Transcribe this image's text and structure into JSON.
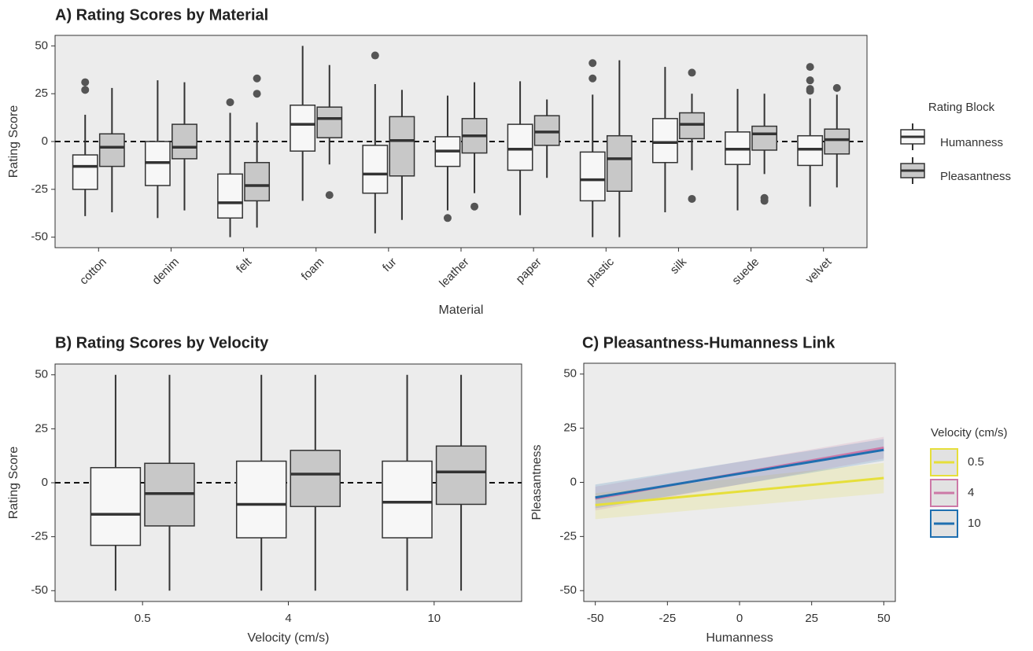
{
  "chart_data": [
    {
      "type": "boxplot",
      "title": "A) Rating Scores by Material",
      "xlabel": "Material",
      "ylabel": "Rating Score",
      "categories": [
        "cotton",
        "denim",
        "felt",
        "foam",
        "fur",
        "leather",
        "paper",
        "plastic",
        "silk",
        "suede",
        "velvet"
      ],
      "ylim": [
        -55.5,
        55.5
      ],
      "yticks": [
        -50,
        -25,
        0,
        25,
        50
      ],
      "hline": 0,
      "legend_title": "Rating Block",
      "series": [
        {
          "name": "Humanness",
          "color": "#f7f7f7",
          "boxes": [
            {
              "min": -39,
              "q1": -25,
              "median": -13,
              "q3": -7,
              "max": 14,
              "outliers": [
                31,
                27
              ]
            },
            {
              "min": -40,
              "q1": -23,
              "median": -11,
              "q3": 0,
              "max": 32,
              "outliers": []
            },
            {
              "min": -50,
              "q1": -40,
              "median": -32,
              "q3": -17,
              "max": 15,
              "outliers": [
                20.5
              ]
            },
            {
              "min": -31,
              "q1": -5,
              "median": 9,
              "q3": 19,
              "max": 50,
              "outliers": []
            },
            {
              "min": -48,
              "q1": -27,
              "median": -17,
              "q3": -2,
              "max": 30,
              "outliers": [
                45
              ]
            },
            {
              "min": -36,
              "q1": -13,
              "median": -5,
              "q3": 2.5,
              "max": 24,
              "outliers": [
                -40
              ]
            },
            {
              "min": -38.5,
              "q1": -15,
              "median": -4,
              "q3": 9,
              "max": 31.5,
              "outliers": []
            },
            {
              "min": -50,
              "q1": -31,
              "median": -20,
              "q3": -5.5,
              "max": 24.5,
              "outliers": [
                41,
                33
              ]
            },
            {
              "min": -37,
              "q1": -11,
              "median": -0.5,
              "q3": 12,
              "max": 39,
              "outliers": []
            },
            {
              "min": -36,
              "q1": -12,
              "median": -4,
              "q3": 5,
              "max": 27.5,
              "outliers": []
            },
            {
              "min": -34,
              "q1": -12.5,
              "median": -4,
              "q3": 3,
              "max": 22.5,
              "outliers": [
                39,
                32,
                27.5,
                26.5
              ]
            }
          ]
        },
        {
          "name": "Pleasantness",
          "color": "#c8c8c8",
          "boxes": [
            {
              "min": -37,
              "q1": -13,
              "median": -3,
              "q3": 4,
              "max": 28,
              "outliers": []
            },
            {
              "min": -36,
              "q1": -9,
              "median": -3,
              "q3": 9,
              "max": 31,
              "outliers": []
            },
            {
              "min": -45,
              "q1": -31,
              "median": -23,
              "q3": -11,
              "max": 10,
              "outliers": [
                33,
                25
              ]
            },
            {
              "min": -12,
              "q1": 2,
              "median": 12,
              "q3": 18,
              "max": 40,
              "outliers": [
                -28
              ]
            },
            {
              "min": -41,
              "q1": -18,
              "median": 0.5,
              "q3": 13,
              "max": 27,
              "outliers": []
            },
            {
              "min": -27,
              "q1": -6,
              "median": 3,
              "q3": 12,
              "max": 31,
              "outliers": [
                -34
              ]
            },
            {
              "min": -19,
              "q1": -2,
              "median": 5,
              "q3": 13.5,
              "max": 22,
              "outliers": []
            },
            {
              "min": -50,
              "q1": -26,
              "median": -9,
              "q3": 3,
              "max": 42.5,
              "outliers": []
            },
            {
              "min": -15,
              "q1": 1.5,
              "median": 9,
              "q3": 15,
              "max": 25,
              "outliers": [
                36,
                -30
              ]
            },
            {
              "min": -17,
              "q1": -4.5,
              "median": 4,
              "q3": 8,
              "max": 25,
              "outliers": [
                -29.5,
                -31
              ]
            },
            {
              "min": -24,
              "q1": -6.5,
              "median": 1,
              "q3": 6.5,
              "max": 24.5,
              "outliers": [
                28
              ]
            }
          ]
        }
      ]
    },
    {
      "type": "boxplot",
      "title": "B) Rating Scores by Velocity",
      "xlabel": "Velocity (cm/s)",
      "ylabel": "Rating Score",
      "categories": [
        "0.5",
        "4",
        "10"
      ],
      "ylim": [
        -55,
        55
      ],
      "yticks": [
        -50,
        -25,
        0,
        25,
        50
      ],
      "hline": 0,
      "series": [
        {
          "color": "#f7f7f7",
          "boxes": [
            {
              "min": -50,
              "q1": -29,
              "median": -14.6,
              "q3": 7,
              "max": 50,
              "outliers": []
            },
            {
              "min": -50,
              "q1": -25.5,
              "median": -10,
              "q3": 10,
              "max": 50,
              "outliers": []
            },
            {
              "min": -50,
              "q1": -25.5,
              "median": -9,
              "q3": 10,
              "max": 50,
              "outliers": []
            }
          ]
        },
        {
          "color": "#c8c8c8",
          "boxes": [
            {
              "min": -50,
              "q1": -20,
              "median": -5,
              "q3": 9,
              "max": 50,
              "outliers": []
            },
            {
              "min": -50,
              "q1": -11,
              "median": 4,
              "q3": 15,
              "max": 50,
              "outliers": []
            },
            {
              "min": -50,
              "q1": -10,
              "median": 5,
              "q3": 17,
              "max": 50,
              "outliers": []
            }
          ]
        }
      ]
    },
    {
      "type": "line",
      "title": "C) Pleasantness-Humanness Link",
      "xlabel": "Humanness",
      "ylabel": "Pleasantness",
      "x": [
        -50,
        50
      ],
      "xlim": [
        -54,
        54
      ],
      "xticks": [
        -50,
        -25,
        0,
        25,
        50
      ],
      "ylim": [
        -55,
        55
      ],
      "yticks": [
        -50,
        -25,
        0,
        25,
        50
      ],
      "legend_title": "Velocity (cm/s)",
      "series": [
        {
          "name": "0.5",
          "color": "#e6df3a",
          "values": [
            -10.5,
            2
          ],
          "lower": [
            -17,
            -5
          ],
          "upper": [
            -5,
            9
          ]
        },
        {
          "name": "4",
          "color": "#cc79a7",
          "values": [
            -7.5,
            16
          ],
          "lower": [
            -13,
            11
          ],
          "upper": [
            -2,
            21
          ]
        },
        {
          "name": "10",
          "color": "#1f6fb0",
          "values": [
            -7,
            15
          ],
          "lower": [
            -12,
            10
          ],
          "upper": [
            -1,
            20
          ]
        }
      ]
    }
  ]
}
